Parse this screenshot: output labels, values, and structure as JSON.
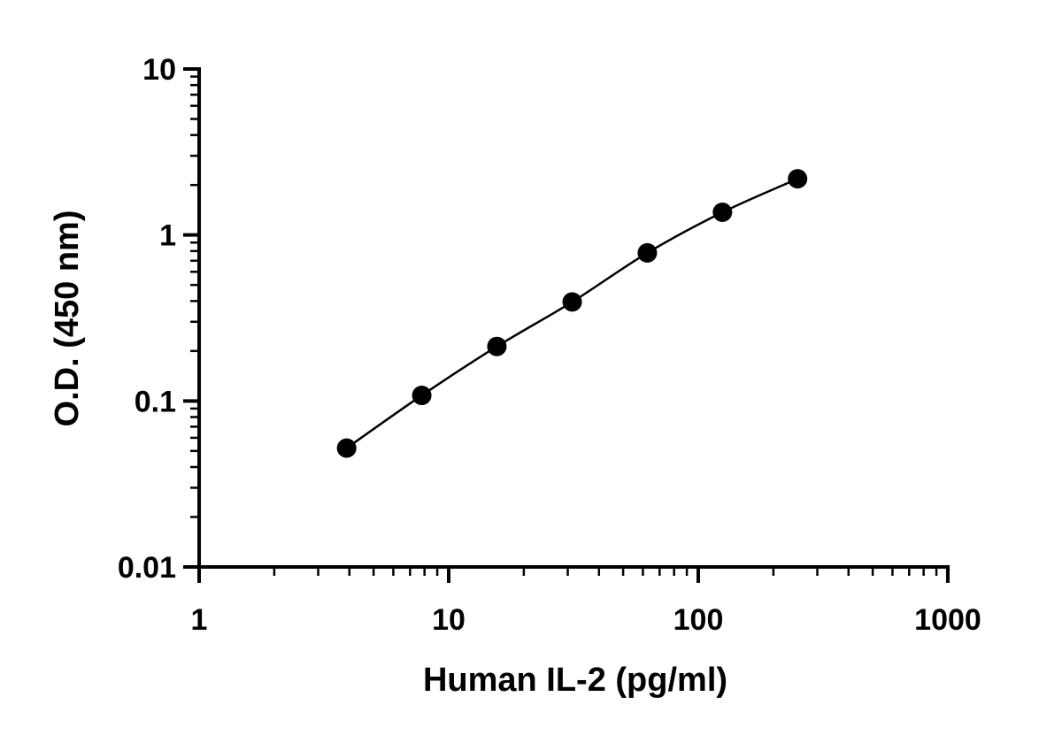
{
  "chart_data": {
    "type": "scatter",
    "xlabel": "Human IL-2 (pg/ml)",
    "ylabel": "O.D. (450 nm)",
    "x_scale": "log",
    "y_scale": "log",
    "xlim": [
      1,
      1000
    ],
    "ylim": [
      0.01,
      10
    ],
    "x_ticks": [
      "1",
      "10",
      "100",
      "1000"
    ],
    "y_ticks": [
      "0.01",
      "0.1",
      "1",
      "10"
    ],
    "grid": false,
    "series": [
      {
        "x": [
          3.9,
          7.8,
          15.6,
          31.25,
          62.5,
          125,
          250
        ],
        "y": [
          0.052,
          0.108,
          0.213,
          0.395,
          0.78,
          1.37,
          2.18
        ],
        "marker": "circle",
        "fit_line": true,
        "color": "#000000"
      }
    ]
  }
}
